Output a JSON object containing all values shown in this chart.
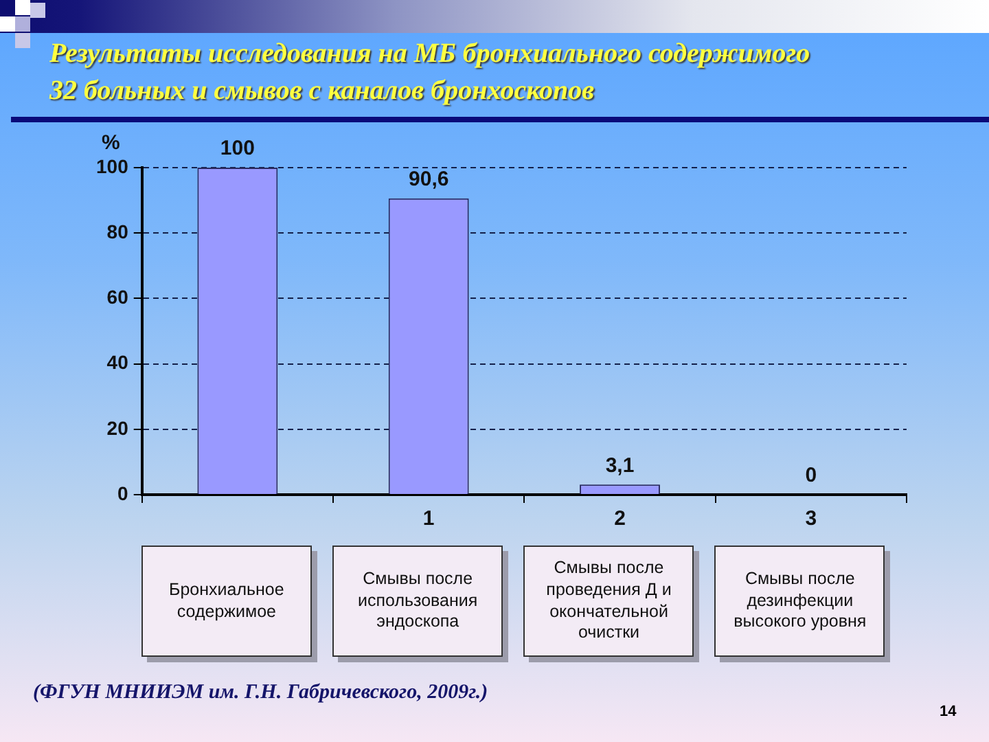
{
  "chart_data": {
    "type": "bar",
    "title": "Результаты исследования на МБ бронхиального содержимого",
    "subtitle": "32 больных и смывов с каналов бронхоскопов",
    "ylabel": "%",
    "categories": [
      null,
      "1",
      "2",
      "3"
    ],
    "values": [
      100,
      90.6,
      3.1,
      0
    ],
    "color": "#9999ff",
    "value_labels": [
      "100",
      "90,6",
      "3,1",
      "0"
    ],
    "ylim": [
      0,
      100
    ],
    "yticks": [
      0,
      20,
      40,
      60,
      80,
      100
    ],
    "grid": "y",
    "annotations": [
      "Бронхиальное содержимое",
      "Смывы после использования эндоскопа",
      "Смывы после проведения Д и окончательной очистки",
      "Смывы после дезинфекции высокого уровня",
      "(ФГУН МНИИЭМ им. Г.Н. Габричевского, 2009г.)",
      "14"
    ]
  }
}
